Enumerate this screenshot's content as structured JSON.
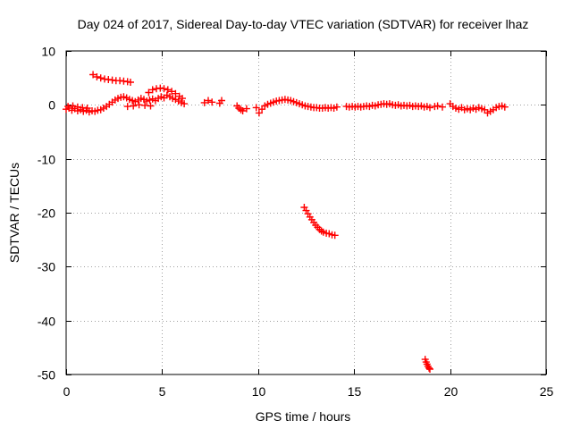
{
  "chart_data": {
    "type": "scatter",
    "title": "Day 024 of 2017, Sidereal Day-to-day VTEC variation (SDTVAR) for receiver lhaz",
    "xlabel": "GPS time / hours",
    "ylabel": "SDTVAR / TECUs",
    "xlim": [
      0,
      25
    ],
    "ylim": [
      -50,
      10
    ],
    "xticks": [
      0,
      5,
      10,
      15,
      20,
      25
    ],
    "yticks": [
      -50,
      -40,
      -30,
      -20,
      -10,
      0,
      10
    ],
    "xtick_labels": [
      "0",
      "5",
      "10",
      "15",
      "20",
      "25"
    ],
    "ytick_labels": [
      "-50",
      "-40",
      "-30",
      "-20",
      "-10",
      "0",
      "10"
    ],
    "grid": true,
    "marker": "plus",
    "color": "#ff0000",
    "series": [
      {
        "name": "SDTVAR",
        "points": [
          [
            0.0,
            -0.8
          ],
          [
            0.15,
            -0.6
          ],
          [
            0.3,
            -1.0
          ],
          [
            0.45,
            -0.7
          ],
          [
            0.6,
            -1.1
          ],
          [
            0.75,
            -0.9
          ],
          [
            0.9,
            -1.2
          ],
          [
            1.05,
            -1.0
          ],
          [
            1.2,
            -1.3
          ],
          [
            1.35,
            -1.1
          ],
          [
            1.5,
            -1.2
          ],
          [
            1.65,
            -1.0
          ],
          [
            1.8,
            -0.9
          ],
          [
            1.95,
            -0.6
          ],
          [
            2.1,
            -0.3
          ],
          [
            2.25,
            0.1
          ],
          [
            2.4,
            0.5
          ],
          [
            2.55,
            0.9
          ],
          [
            2.7,
            1.2
          ],
          [
            2.85,
            1.4
          ],
          [
            3.0,
            1.5
          ],
          [
            3.15,
            1.3
          ],
          [
            3.3,
            1.0
          ],
          [
            3.45,
            0.8
          ],
          [
            3.6,
            0.6
          ],
          [
            3.75,
            0.9
          ],
          [
            3.9,
            1.2
          ],
          [
            4.05,
            1.0
          ],
          [
            4.2,
            0.7
          ],
          [
            4.35,
            0.9
          ],
          [
            4.5,
            1.1
          ],
          [
            4.65,
            0.8
          ],
          [
            4.8,
            1.2
          ],
          [
            4.95,
            1.5
          ],
          [
            5.1,
            1.3
          ],
          [
            5.25,
            1.8
          ],
          [
            5.4,
            1.5
          ],
          [
            5.55,
            1.2
          ],
          [
            5.7,
            1.0
          ],
          [
            5.85,
            0.7
          ],
          [
            6.0,
            0.4
          ],
          [
            6.15,
            0.2
          ],
          [
            0.1,
            -0.3
          ],
          [
            0.35,
            -0.2
          ],
          [
            0.6,
            -0.4
          ],
          [
            0.85,
            -0.5
          ],
          [
            1.1,
            -0.6
          ],
          [
            3.2,
            -0.3
          ],
          [
            3.5,
            -0.2
          ],
          [
            3.8,
            0.0
          ],
          [
            4.1,
            -0.1
          ],
          [
            4.4,
            -0.2
          ],
          [
            1.4,
            5.6
          ],
          [
            1.6,
            5.2
          ],
          [
            1.8,
            5.0
          ],
          [
            2.0,
            4.8
          ],
          [
            2.2,
            4.7
          ],
          [
            2.4,
            4.6
          ],
          [
            2.6,
            4.5
          ],
          [
            2.8,
            4.5
          ],
          [
            3.0,
            4.4
          ],
          [
            3.2,
            4.3
          ],
          [
            3.35,
            4.2
          ],
          [
            4.3,
            2.3
          ],
          [
            4.5,
            2.8
          ],
          [
            4.7,
            3.0
          ],
          [
            4.9,
            3.1
          ],
          [
            5.1,
            3.0
          ],
          [
            5.3,
            2.8
          ],
          [
            5.5,
            2.5
          ],
          [
            5.7,
            2.1
          ],
          [
            5.9,
            1.6
          ],
          [
            6.05,
            1.2
          ],
          [
            7.2,
            0.4
          ],
          [
            7.4,
            0.8
          ],
          [
            7.6,
            0.5
          ],
          [
            8.0,
            0.3
          ],
          [
            8.1,
            0.8
          ],
          [
            8.9,
            -0.2
          ],
          [
            9.0,
            -0.6
          ],
          [
            9.1,
            -0.9
          ],
          [
            9.2,
            -1.1
          ],
          [
            9.4,
            -0.7
          ],
          [
            9.9,
            -0.5
          ],
          [
            10.05,
            -1.5
          ],
          [
            10.2,
            -0.8
          ],
          [
            10.35,
            -0.2
          ],
          [
            10.5,
            0.1
          ],
          [
            10.65,
            0.3
          ],
          [
            10.8,
            0.5
          ],
          [
            10.95,
            0.7
          ],
          [
            11.1,
            0.8
          ],
          [
            11.25,
            0.9
          ],
          [
            11.4,
            1.0
          ],
          [
            11.55,
            0.9
          ],
          [
            11.7,
            0.8
          ],
          [
            11.85,
            0.6
          ],
          [
            12.0,
            0.4
          ],
          [
            12.15,
            0.2
          ],
          [
            12.3,
            0.0
          ],
          [
            12.45,
            -0.2
          ],
          [
            12.6,
            -0.3
          ],
          [
            12.75,
            -0.4
          ],
          [
            12.9,
            -0.5
          ],
          [
            13.05,
            -0.5
          ],
          [
            13.2,
            -0.6
          ],
          [
            13.35,
            -0.6
          ],
          [
            13.5,
            -0.5
          ],
          [
            13.65,
            -0.6
          ],
          [
            13.8,
            -0.5
          ],
          [
            13.95,
            -0.6
          ],
          [
            14.1,
            -0.4
          ],
          [
            14.6,
            -0.3
          ],
          [
            14.75,
            -0.4
          ],
          [
            14.9,
            -0.3
          ],
          [
            15.05,
            -0.4
          ],
          [
            15.2,
            -0.3
          ],
          [
            15.35,
            -0.4
          ],
          [
            15.5,
            -0.3
          ],
          [
            15.65,
            -0.2
          ],
          [
            15.8,
            -0.3
          ],
          [
            15.95,
            -0.1
          ],
          [
            16.1,
            -0.2
          ],
          [
            16.25,
            0.0
          ],
          [
            16.4,
            0.1
          ],
          [
            16.55,
            0.2
          ],
          [
            16.7,
            0.1
          ],
          [
            16.85,
            0.2
          ],
          [
            17.0,
            0.0
          ],
          [
            17.15,
            -0.1
          ],
          [
            17.3,
            0.0
          ],
          [
            17.45,
            -0.2
          ],
          [
            17.6,
            -0.1
          ],
          [
            17.75,
            -0.2
          ],
          [
            17.9,
            -0.1
          ],
          [
            18.05,
            -0.3
          ],
          [
            18.2,
            -0.2
          ],
          [
            18.35,
            -0.3
          ],
          [
            18.5,
            -0.2
          ],
          [
            18.65,
            -0.4
          ],
          [
            18.8,
            -0.3
          ],
          [
            18.95,
            -0.5
          ],
          [
            19.2,
            -0.3
          ],
          [
            19.35,
            -0.2
          ],
          [
            19.6,
            -0.4
          ],
          [
            20.0,
            0.2
          ],
          [
            20.15,
            -0.3
          ],
          [
            20.3,
            -0.6
          ],
          [
            20.45,
            -0.8
          ],
          [
            20.6,
            -0.5
          ],
          [
            20.75,
            -0.9
          ],
          [
            20.9,
            -0.7
          ],
          [
            21.05,
            -0.9
          ],
          [
            21.2,
            -0.6
          ],
          [
            21.35,
            -0.8
          ],
          [
            21.5,
            -0.5
          ],
          [
            21.65,
            -0.7
          ],
          [
            21.8,
            -0.9
          ],
          [
            21.95,
            -1.5
          ],
          [
            22.1,
            -1.2
          ],
          [
            22.25,
            -0.9
          ],
          [
            22.4,
            -0.5
          ],
          [
            22.55,
            -0.3
          ],
          [
            22.7,
            -0.2
          ],
          [
            22.85,
            -0.4
          ],
          [
            12.4,
            -19.0
          ],
          [
            12.5,
            -19.6
          ],
          [
            12.6,
            -20.2
          ],
          [
            12.7,
            -20.8
          ],
          [
            12.8,
            -21.3
          ],
          [
            12.9,
            -21.8
          ],
          [
            13.0,
            -22.3
          ],
          [
            13.1,
            -22.7
          ],
          [
            13.2,
            -23.1
          ],
          [
            13.3,
            -23.4
          ],
          [
            13.4,
            -23.6
          ],
          [
            13.55,
            -23.8
          ],
          [
            13.7,
            -23.9
          ],
          [
            13.85,
            -24.1
          ],
          [
            14.0,
            -24.2
          ],
          [
            18.7,
            -47.2
          ],
          [
            18.75,
            -47.7
          ],
          [
            18.8,
            -48.1
          ],
          [
            18.85,
            -48.5
          ],
          [
            18.9,
            -48.8
          ],
          [
            18.95,
            -49.0
          ]
        ]
      }
    ]
  }
}
